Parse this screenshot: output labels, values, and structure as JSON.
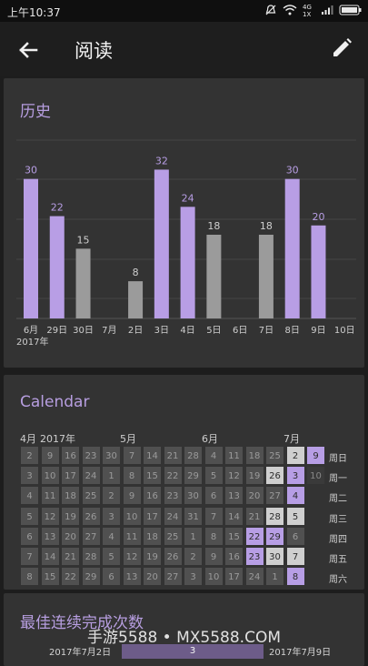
{
  "status_bar": {
    "time": "上午10:37",
    "icons": [
      "bell-off-icon",
      "wifi-icon",
      "signal-icon",
      "battery-icon"
    ],
    "network": "4G 1X"
  },
  "app_bar": {
    "title": "阅读"
  },
  "history": {
    "title": "历史",
    "year_label": "2017年",
    "colors": {
      "active": "#b89ee5",
      "inactive": "#9b9b9b"
    },
    "chart_data": {
      "type": "bar",
      "categories": [
        "6月",
        "29日",
        "30日",
        "7月",
        "2日",
        "3日",
        "4日",
        "5日",
        "6日",
        "7日",
        "8日",
        "9日",
        "10日"
      ],
      "values": [
        30,
        22,
        15,
        null,
        8,
        32,
        24,
        18,
        null,
        18,
        30,
        20,
        null
      ],
      "highlight": [
        true,
        true,
        false,
        false,
        false,
        true,
        true,
        false,
        false,
        false,
        true,
        true,
        false
      ],
      "value_labels": [
        "30",
        "22",
        "15",
        "",
        "8",
        "32",
        "24",
        "18",
        "",
        "18",
        "30",
        "20",
        ""
      ],
      "ylim": [
        0,
        36
      ]
    }
  },
  "calendar": {
    "title": "Calendar",
    "months": [
      "4月",
      "2017年",
      "5月",
      "6月",
      "7月"
    ],
    "weekdays": [
      "周日",
      "周一",
      "周二",
      "周三",
      "周四",
      "周五",
      "周六"
    ],
    "rows": [
      [
        "2",
        "9",
        "16",
        "23",
        "30",
        "7",
        "14",
        "21",
        "28",
        "4",
        "11",
        "18",
        "25",
        "2",
        "9"
      ],
      [
        "3",
        "10",
        "17",
        "24",
        "1",
        "8",
        "15",
        "22",
        "29",
        "5",
        "12",
        "19",
        "26",
        "3",
        "10"
      ],
      [
        "4",
        "11",
        "18",
        "25",
        "2",
        "9",
        "16",
        "23",
        "30",
        "6",
        "13",
        "20",
        "27",
        "4",
        ""
      ],
      [
        "5",
        "12",
        "19",
        "26",
        "3",
        "10",
        "17",
        "24",
        "31",
        "7",
        "14",
        "21",
        "28",
        "5",
        ""
      ],
      [
        "6",
        "13",
        "20",
        "27",
        "4",
        "11",
        "18",
        "25",
        "1",
        "8",
        "15",
        "22",
        "29",
        "6",
        ""
      ],
      [
        "7",
        "14",
        "21",
        "28",
        "5",
        "12",
        "19",
        "26",
        "2",
        "9",
        "16",
        "23",
        "30",
        "7",
        ""
      ],
      [
        "8",
        "15",
        "22",
        "29",
        "6",
        "13",
        "20",
        "27",
        "3",
        "10",
        "17",
        "24",
        "1",
        "8",
        ""
      ]
    ],
    "purple_cells": [
      [
        0,
        14
      ],
      [
        1,
        13
      ],
      [
        2,
        13
      ],
      [
        4,
        11
      ],
      [
        4,
        12
      ],
      [
        5,
        11
      ],
      [
        6,
        13
      ]
    ],
    "light_cells": [
      [
        0,
        13
      ],
      [
        1,
        12
      ],
      [
        3,
        12
      ],
      [
        3,
        13
      ],
      [
        5,
        13
      ],
      [
        5,
        12
      ]
    ],
    "dark_cells": [
      [
        1,
        14
      ]
    ],
    "colors": {
      "purple": "#b79ee5",
      "light": "#cfcfcf",
      "normal": "#505050",
      "dark": "#3a3a3a"
    }
  },
  "streak": {
    "title": "最佳连续完成次数",
    "start_date": "2017年7月2日",
    "count": "3",
    "end_date": "2017年7月9日"
  },
  "watermark": "手游5588 • MX5588.COM"
}
